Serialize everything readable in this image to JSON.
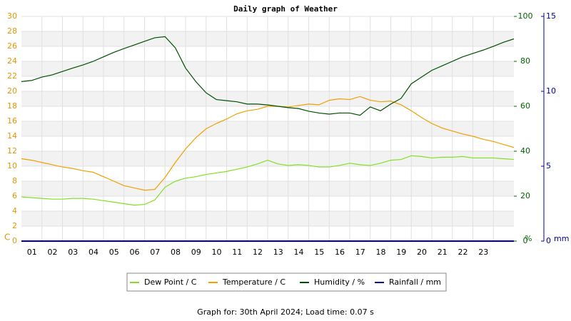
{
  "chart_data": {
    "type": "line",
    "title": "Daily graph of Weather",
    "x": [
      0,
      0.5,
      1,
      1.5,
      2,
      2.5,
      3,
      3.5,
      4,
      4.5,
      5,
      5.5,
      6,
      6.5,
      7,
      7.5,
      8,
      8.5,
      9,
      9.5,
      10,
      10.5,
      11,
      11.5,
      12,
      12.5,
      13,
      13.5,
      14,
      14.5,
      15,
      15.5,
      16,
      16.5,
      17,
      17.5,
      18,
      18.5,
      19,
      19.5,
      20,
      20.5,
      21,
      21.5,
      22,
      22.5,
      23,
      23.5,
      24
    ],
    "xlim": [
      0,
      24
    ],
    "xticks": [
      {
        "value": 1,
        "label": "01"
      },
      {
        "value": 2,
        "label": "02"
      },
      {
        "value": 3,
        "label": "03"
      },
      {
        "value": 4,
        "label": "04"
      },
      {
        "value": 5,
        "label": "05"
      },
      {
        "value": 6,
        "label": "06"
      },
      {
        "value": 7,
        "label": "07"
      },
      {
        "value": 8,
        "label": "08"
      },
      {
        "value": 9,
        "label": "09"
      },
      {
        "value": 10,
        "label": "10"
      },
      {
        "value": 11,
        "label": "11"
      },
      {
        "value": 12,
        "label": "12"
      },
      {
        "value": 13,
        "label": "13"
      },
      {
        "value": 14,
        "label": "14"
      },
      {
        "value": 15,
        "label": "15"
      },
      {
        "value": 16,
        "label": "16"
      },
      {
        "value": 17,
        "label": "17"
      },
      {
        "value": 18,
        "label": "18"
      },
      {
        "value": 19,
        "label": "19"
      },
      {
        "value": 20,
        "label": "20"
      },
      {
        "value": 21,
        "label": "21"
      },
      {
        "value": 22,
        "label": "22"
      },
      {
        "value": 23,
        "label": "23"
      }
    ],
    "ylabel": "C",
    "ylim": [
      0,
      30
    ],
    "yticks": [
      0,
      2,
      4,
      6,
      8,
      10,
      12,
      14,
      16,
      18,
      20,
      22,
      24,
      26,
      28,
      30
    ],
    "y2label": "%",
    "y2lim": [
      0,
      100
    ],
    "y2ticks": [
      0,
      20,
      40,
      60,
      80,
      100
    ],
    "y3label": "mm",
    "y3lim": [
      0,
      15
    ],
    "y3ticks": [
      0,
      5,
      10,
      15
    ],
    "grid": true,
    "series": [
      {
        "name": "Dew Point / C",
        "color": "#80e020",
        "values": [
          5.9,
          5.8,
          5.7,
          5.6,
          5.6,
          5.7,
          5.7,
          5.6,
          5.4,
          5.2,
          5.0,
          4.8,
          4.9,
          5.5,
          7.2,
          8.0,
          8.4,
          8.6,
          8.9,
          9.1,
          9.3,
          9.6,
          9.9,
          10.3,
          10.8,
          10.3,
          10.1,
          10.2,
          10.1,
          9.9,
          9.9,
          10.1,
          10.4,
          10.2,
          10.1,
          10.4,
          10.8,
          10.9,
          11.4,
          11.3,
          11.1,
          11.2,
          11.2,
          11.3,
          11.1,
          11.1,
          11.1,
          11.0,
          10.9
        ]
      },
      {
        "name": "Temperature / C",
        "color": "#f0a000",
        "values": [
          11.0,
          10.8,
          10.5,
          10.2,
          9.9,
          9.7,
          9.4,
          9.2,
          8.6,
          8.0,
          7.4,
          7.1,
          6.8,
          6.9,
          8.5,
          10.5,
          12.3,
          13.8,
          15.0,
          15.7,
          16.3,
          17.0,
          17.4,
          17.6,
          18.0,
          18.0,
          17.9,
          18.1,
          18.3,
          18.2,
          18.8,
          19.0,
          18.9,
          19.3,
          18.8,
          18.6,
          18.7,
          18.2,
          17.4,
          16.5,
          15.7,
          15.1,
          14.7,
          14.3,
          14.0,
          13.6,
          13.3,
          12.9,
          12.5
        ]
      },
      {
        "name": "Humidity / %",
        "color": "#005000",
        "axis": "y2",
        "values": [
          71,
          71.5,
          73,
          74,
          75.5,
          77,
          78.4,
          80,
          82,
          84,
          85.7,
          87.3,
          88.9,
          90.5,
          91,
          86,
          77,
          71,
          66,
          63,
          62.5,
          62,
          61,
          61,
          60.6,
          60,
          59.4,
          59,
          57.8,
          57,
          56.5,
          57,
          57,
          56,
          59.7,
          58,
          61,
          63.5,
          70,
          73,
          76,
          78,
          80,
          82,
          83.5,
          85,
          86.7,
          88.5,
          90
        ]
      },
      {
        "name": "Rainfall / mm",
        "color": "#0000a0",
        "axis": "y3",
        "values": [
          0,
          0,
          0,
          0,
          0,
          0,
          0,
          0,
          0,
          0,
          0,
          0,
          0,
          0,
          0,
          0,
          0,
          0,
          0,
          0,
          0,
          0,
          0,
          0,
          0,
          0,
          0,
          0,
          0,
          0,
          0,
          0,
          0,
          0,
          0,
          0,
          0,
          0,
          0,
          0,
          0,
          0,
          0,
          0,
          0,
          0,
          0,
          0,
          0
        ]
      }
    ],
    "footer": "Graph for: 30th April 2024; Load time: 0.07 s"
  }
}
